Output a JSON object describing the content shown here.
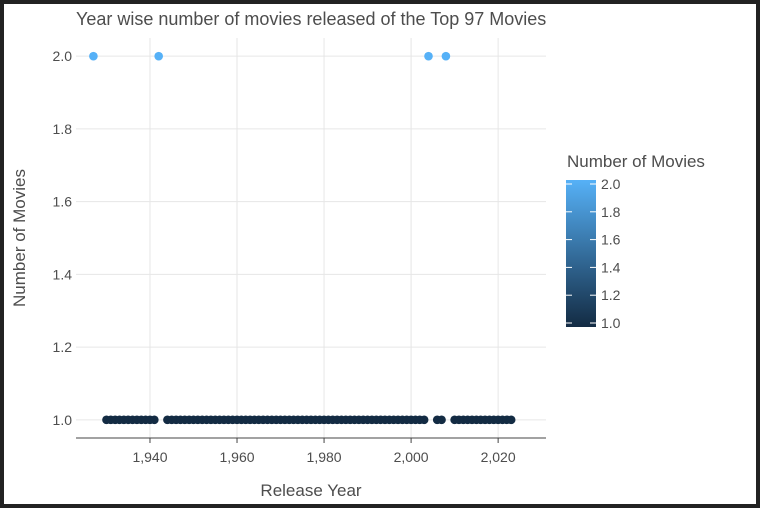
{
  "chart_data": {
    "type": "scatter",
    "title": "Year wise number of movies released of the Top 97 Movies",
    "xlabel": "Release Year",
    "ylabel": "Number of Movies",
    "xlim": [
      1923,
      2031
    ],
    "ylim": [
      0.95,
      2.05
    ],
    "xticks": [
      1940,
      1960,
      1980,
      2000,
      2020
    ],
    "xtick_labels": [
      "1,940",
      "1,960",
      "1,980",
      "2,000",
      "2,020"
    ],
    "yticks": [
      1.0,
      1.2,
      1.4,
      1.6,
      1.8,
      2.0
    ],
    "ytick_labels": [
      "1.0",
      "1.2",
      "1.4",
      "1.6",
      "1.8",
      "2.0"
    ],
    "grid": true,
    "points": {
      "x": [
        1927,
        1942,
        2004,
        2008,
        1930,
        1931,
        1932,
        1933,
        1934,
        1935,
        1936,
        1937,
        1938,
        1939,
        1940,
        1941,
        1944,
        1945,
        1946,
        1947,
        1948,
        1949,
        1950,
        1951,
        1952,
        1953,
        1954,
        1955,
        1956,
        1957,
        1958,
        1959,
        1960,
        1961,
        1962,
        1963,
        1964,
        1965,
        1966,
        1967,
        1968,
        1969,
        1970,
        1971,
        1972,
        1973,
        1974,
        1975,
        1976,
        1977,
        1978,
        1979,
        1980,
        1981,
        1982,
        1983,
        1984,
        1985,
        1986,
        1987,
        1988,
        1989,
        1990,
        1991,
        1992,
        1993,
        1994,
        1995,
        1996,
        1997,
        1998,
        1999,
        2000,
        2001,
        2002,
        2003,
        2006,
        2007,
        2010,
        2011,
        2012,
        2013,
        2014,
        2015,
        2016,
        2017,
        2018,
        2019,
        2020,
        2021,
        2022,
        2023
      ],
      "y": [
        2,
        2,
        2,
        2,
        1,
        1,
        1,
        1,
        1,
        1,
        1,
        1,
        1,
        1,
        1,
        1,
        1,
        1,
        1,
        1,
        1,
        1,
        1,
        1,
        1,
        1,
        1,
        1,
        1,
        1,
        1,
        1,
        1,
        1,
        1,
        1,
        1,
        1,
        1,
        1,
        1,
        1,
        1,
        1,
        1,
        1,
        1,
        1,
        1,
        1,
        1,
        1,
        1,
        1,
        1,
        1,
        1,
        1,
        1,
        1,
        1,
        1,
        1,
        1,
        1,
        1,
        1,
        1,
        1,
        1,
        1,
        1,
        1,
        1,
        1,
        1,
        1,
        1,
        1,
        1,
        1,
        1,
        1,
        1,
        1,
        1,
        1,
        1,
        1,
        1,
        1,
        1
      ]
    },
    "color_scale": {
      "title": "Number of Movies",
      "low_color": "#132b43",
      "high_color": "#56b1f7",
      "range": [
        1.0,
        2.0
      ],
      "ticks": [
        1.0,
        1.2,
        1.4,
        1.6,
        1.8,
        2.0
      ],
      "tick_labels": [
        "1.0",
        "1.2",
        "1.4",
        "1.6",
        "1.8",
        "2.0"
      ]
    }
  }
}
